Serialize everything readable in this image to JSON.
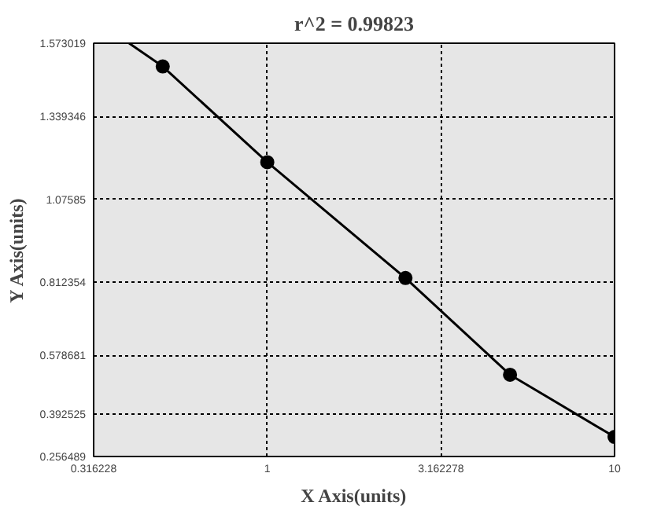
{
  "chart_data": {
    "type": "scatter",
    "title": "r^2 = 0.99823",
    "xlabel": "X Axis(units)",
    "ylabel": "Y Axis(units)",
    "log": "x",
    "grid": true,
    "marker": "circle",
    "xlim": [
      0.316228,
      10
    ],
    "xticks": [
      0.316228,
      1,
      3.162278,
      10
    ],
    "ylim": [
      0.256489,
      1.573019
    ],
    "yticks": [
      0.256489,
      0.392525,
      0.578681,
      0.812354,
      1.07585,
      1.339346,
      1.573019
    ],
    "series": [
      {
        "color": "#000000",
        "x": [
          0.5,
          1,
          2.5,
          5,
          10
        ],
        "values": [
          1.499,
          1.194,
          0.825,
          0.517,
          0.319
        ]
      },
      {
        "type": "line",
        "marker": "none",
        "color": "#000000",
        "x": [
          0.4,
          0.5,
          1,
          2.5,
          5,
          10
        ],
        "values": [
          1.573,
          1.499,
          1.194,
          0.825,
          0.517,
          0.319
        ]
      }
    ]
  }
}
